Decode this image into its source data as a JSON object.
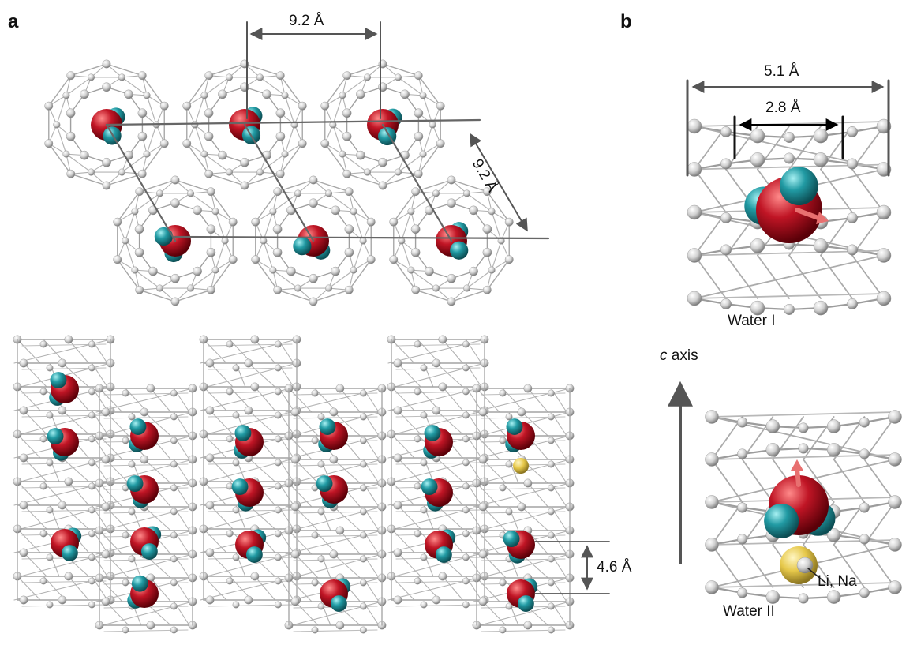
{
  "panels": {
    "a": "a",
    "b": "b"
  },
  "dimensions": {
    "top_spacing": "9.2 Å",
    "diag_spacing": "9.2 Å",
    "stack_spacing": "4.6 Å",
    "outer_diameter": "5.1 Å",
    "inner_diameter": "2.8 Å"
  },
  "labels": {
    "water_i": "Water I",
    "water_ii": "Water II",
    "c_axis_italic": "c",
    "c_axis_rest": " axis",
    "ion": "Li, Na"
  },
  "colors": {
    "cage": "#9a9a9a",
    "atom": "#d6d6d6",
    "oxygen": "#b01020",
    "hydrogen": "#1f8f98",
    "ion": "#e6cc50",
    "dipole": "#e87070",
    "guide": "#555555"
  }
}
